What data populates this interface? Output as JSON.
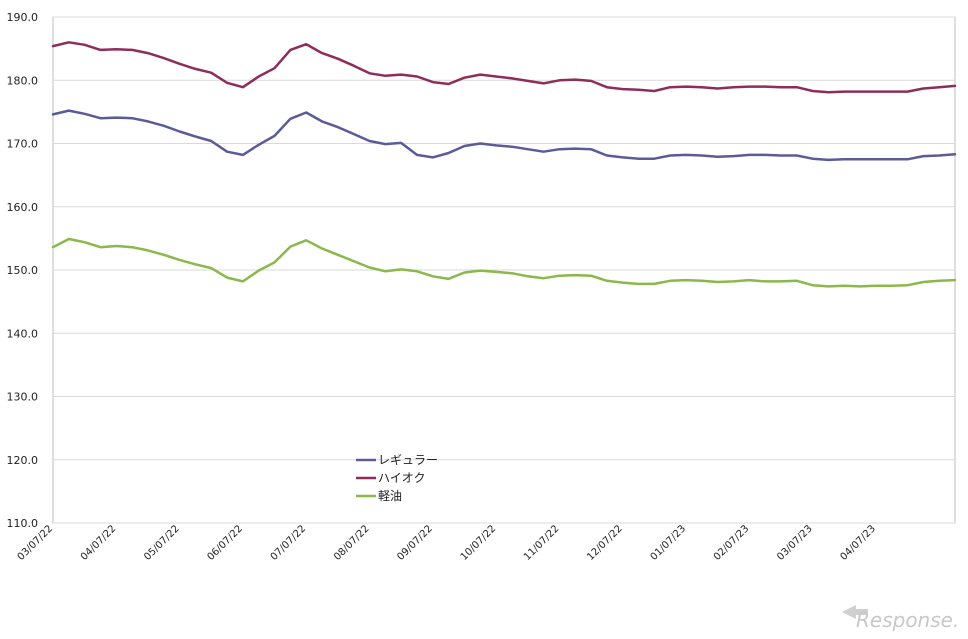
{
  "chart_data": {
    "type": "line",
    "ylim": [
      110,
      190
    ],
    "yticks": [
      "110.0",
      "120.0",
      "130.0",
      "140.0",
      "150.0",
      "160.0",
      "170.0",
      "180.0",
      "190.0"
    ],
    "xticks": [
      "03/07/22",
      "04/07/22",
      "05/07/22",
      "06/07/22",
      "07/07/22",
      "08/07/22",
      "09/07/22",
      "10/07/22",
      "11/07/22",
      "12/07/22",
      "01/07/23",
      "02/07/23",
      "03/07/23",
      "04/07/23"
    ],
    "xtick_index": [
      0,
      4,
      8,
      12,
      16,
      20,
      24,
      28,
      32,
      36,
      40,
      44,
      48,
      52
    ],
    "n_points": 58,
    "grid": "horizontal",
    "legend_position": "center-bottom",
    "series": [
      {
        "name": "ハイオク",
        "color": "#8e2d5a",
        "values": [
          185.4,
          186.0,
          185.6,
          184.8,
          184.9,
          184.8,
          184.3,
          183.5,
          182.6,
          181.8,
          181.2,
          179.6,
          178.9,
          180.6,
          181.9,
          184.8,
          185.7,
          184.3,
          183.4,
          182.3,
          181.1,
          180.7,
          180.9,
          180.6,
          179.7,
          179.4,
          180.4,
          180.9,
          180.6,
          180.3,
          179.9,
          179.5,
          180.0,
          180.1,
          179.9,
          178.9,
          178.6,
          178.5,
          178.3,
          178.9,
          179.0,
          178.9,
          178.7,
          178.9,
          179.0,
          179.0,
          178.9,
          178.9,
          178.3,
          178.1,
          178.2,
          178.2,
          178.2,
          178.2,
          178.2,
          178.7,
          178.9,
          179.1
        ]
      },
      {
        "name": "レギュラー",
        "color": "#5b5b9a",
        "values": [
          174.6,
          175.2,
          174.7,
          174.0,
          174.1,
          174.0,
          173.5,
          172.8,
          171.9,
          171.1,
          170.4,
          168.7,
          168.2,
          169.8,
          171.2,
          173.9,
          174.9,
          173.5,
          172.6,
          171.5,
          170.4,
          169.9,
          170.1,
          168.2,
          167.8,
          168.5,
          169.6,
          170.0,
          169.7,
          169.5,
          169.1,
          168.7,
          169.1,
          169.2,
          169.1,
          168.1,
          167.8,
          167.6,
          167.6,
          168.1,
          168.2,
          168.1,
          167.9,
          168.0,
          168.2,
          168.2,
          168.1,
          168.1,
          167.6,
          167.4,
          167.5,
          167.5,
          167.5,
          167.5,
          167.5,
          168.0,
          168.1,
          168.3
        ]
      },
      {
        "name": "軽油",
        "color": "#8ab84a",
        "values": [
          153.6,
          154.9,
          154.4,
          153.6,
          153.8,
          153.6,
          153.1,
          152.4,
          151.6,
          150.9,
          150.3,
          148.8,
          148.2,
          149.9,
          151.2,
          153.7,
          154.7,
          153.4,
          152.4,
          151.4,
          150.4,
          149.8,
          150.1,
          149.8,
          149.0,
          148.6,
          149.6,
          149.9,
          149.7,
          149.5,
          149.0,
          148.7,
          149.1,
          149.2,
          149.1,
          148.3,
          148.0,
          147.8,
          147.8,
          148.3,
          148.4,
          148.3,
          148.1,
          148.2,
          148.4,
          148.2,
          148.2,
          148.3,
          147.6,
          147.4,
          147.5,
          147.4,
          147.5,
          147.5,
          147.6,
          148.1,
          148.3,
          148.4
        ]
      }
    ],
    "legend_order": [
      "レギュラー",
      "ハイオク",
      "軽油"
    ]
  },
  "watermark": {
    "text": "Response."
  }
}
